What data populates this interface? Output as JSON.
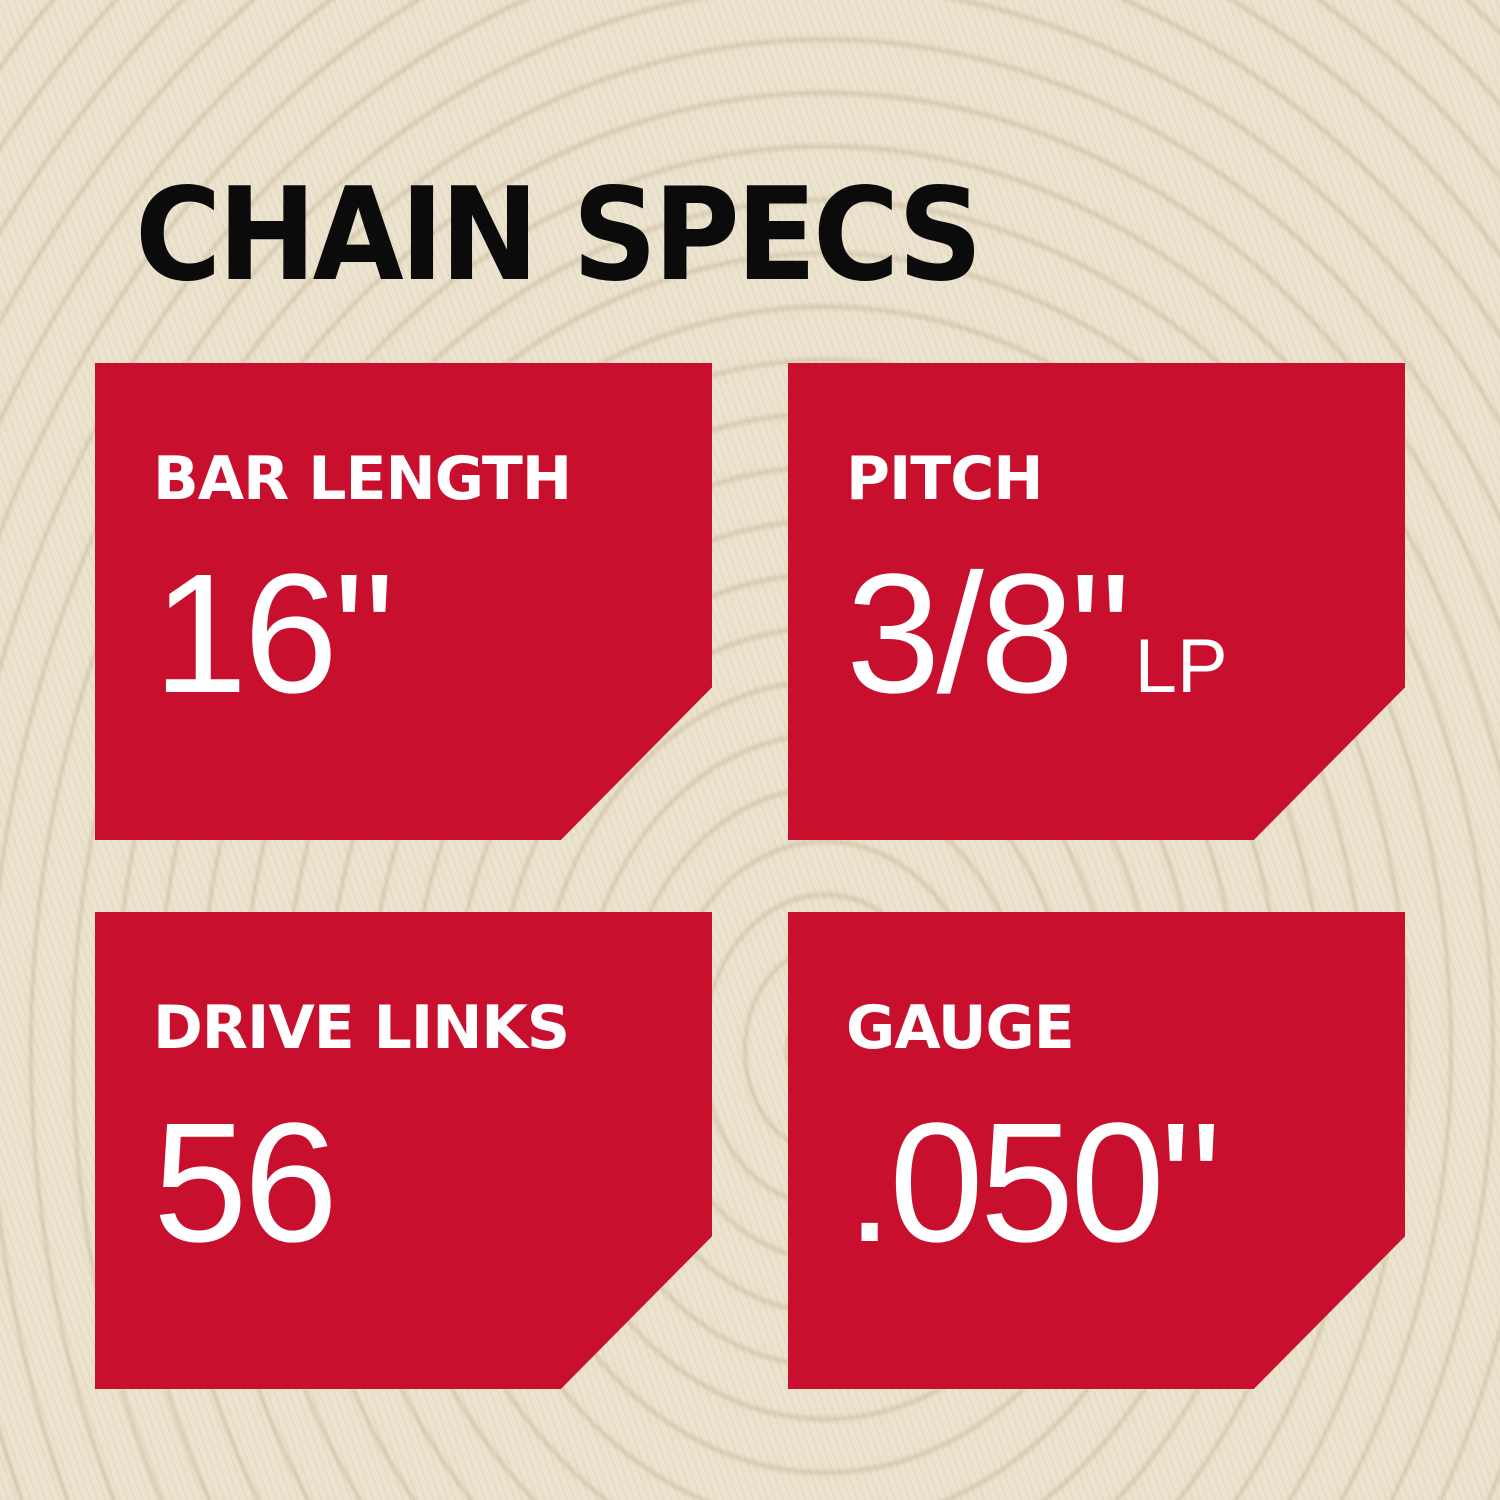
{
  "title": "CHAIN SPECS",
  "accent_color": "#c8102e",
  "specs": [
    {
      "label": "BAR LENGTH",
      "value": "16\"",
      "suffix": ""
    },
    {
      "label": "PITCH",
      "value": "3/8\"",
      "suffix": "LP"
    },
    {
      "label": "DRIVE LINKS",
      "value": "56",
      "suffix": ""
    },
    {
      "label": "GAUGE",
      "value": ".050\"",
      "suffix": ""
    }
  ]
}
